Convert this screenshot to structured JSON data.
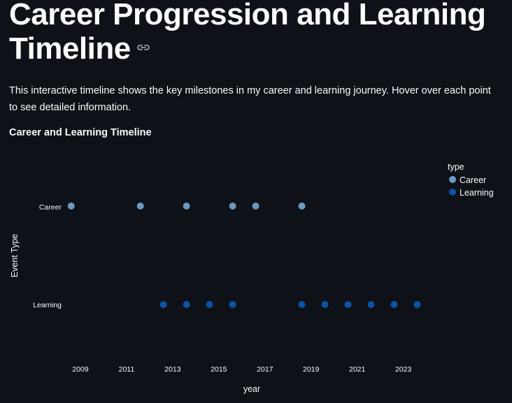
{
  "page": {
    "title": "Career Progression and Learning Timeline",
    "link_icon": "link-icon",
    "description": "This interactive timeline shows the key milestones in my career and learning journey. Hover over each point to see detailed information.",
    "chart_heading": "Career and Learning Timeline"
  },
  "chart_data": {
    "type": "scatter",
    "title": "",
    "xlabel": "year",
    "ylabel": "Event Type",
    "x_ticks": [
      2009,
      2011,
      2013,
      2015,
      2017,
      2019,
      2021,
      2023
    ],
    "xlim": [
      2008,
      2024.8
    ],
    "categories": [
      "Career",
      "Learning"
    ],
    "legend": {
      "title": "type",
      "placement": "top-right"
    },
    "series": [
      {
        "name": "Career",
        "category": "Career",
        "color": "#6c98c0",
        "x": [
          2008.6,
          2011.6,
          2013.6,
          2015.6,
          2016.6,
          2018.6
        ]
      },
      {
        "name": "Learning",
        "category": "Learning",
        "color": "#0a53a6",
        "x": [
          2012.6,
          2013.6,
          2014.6,
          2015.6,
          2018.6,
          2019.6,
          2020.6,
          2021.6,
          2022.6,
          2023.6
        ]
      }
    ]
  }
}
